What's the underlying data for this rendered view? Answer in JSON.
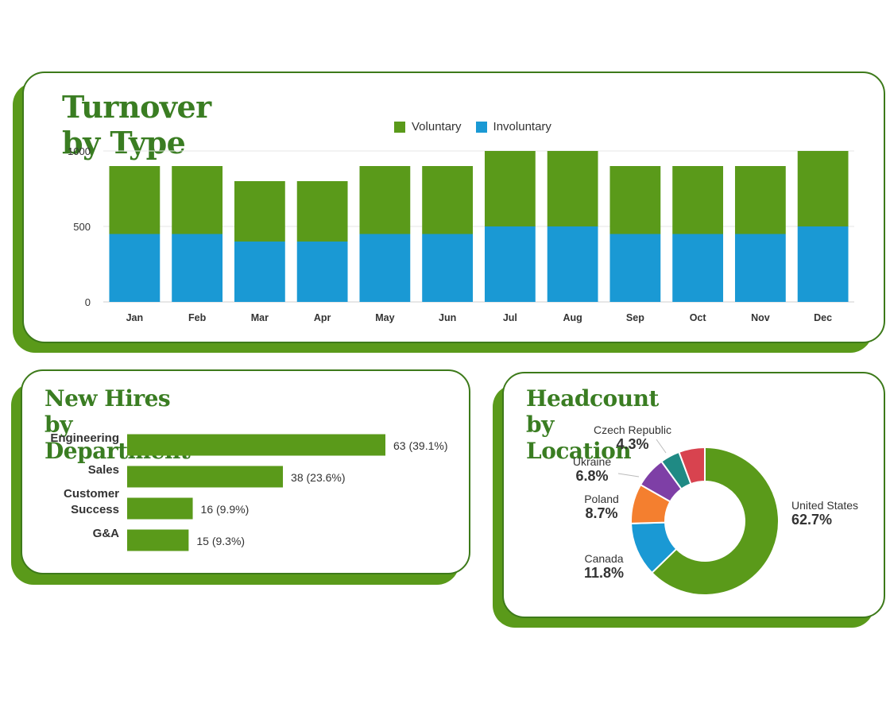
{
  "colors": {
    "brand_green": "#5a9a1a",
    "title_green": "#3a7d22",
    "voluntary": "#5a9a1a",
    "involuntary": "#1a99d4",
    "bar_green": "#5a9a1a"
  },
  "turnover": {
    "title": "Turnover by Type",
    "chart_data": {
      "type": "bar",
      "stacked": true,
      "title": "Turnover by Type",
      "categories": [
        "Jan",
        "Feb",
        "Mar",
        "Apr",
        "May",
        "Jun",
        "Jul",
        "Aug",
        "Sep",
        "Oct",
        "Nov",
        "Dec"
      ],
      "series": [
        {
          "name": "Voluntary",
          "color": "#5a9a1a",
          "values": [
            450,
            450,
            400,
            400,
            450,
            450,
            500,
            500,
            450,
            450,
            450,
            500
          ]
        },
        {
          "name": "Involuntary",
          "color": "#1a99d4",
          "values": [
            450,
            450,
            400,
            400,
            450,
            450,
            500,
            500,
            450,
            450,
            450,
            500
          ]
        }
      ],
      "ylim": [
        0,
        1000
      ],
      "yticks": [
        0,
        500,
        1000
      ],
      "grid": true,
      "legend_position": "top-center"
    }
  },
  "hires": {
    "title": "New Hires by Department",
    "chart_data": {
      "type": "bar",
      "orientation": "horizontal",
      "title": "New Hires by Department",
      "categories": [
        "Engineering",
        "Sales",
        "Customer Success",
        "G&A"
      ],
      "category_lines": [
        [
          "Engineering"
        ],
        [
          "Sales"
        ],
        [
          "Customer",
          "Success"
        ],
        [
          "G&A"
        ]
      ],
      "values": [
        63,
        38,
        16,
        15
      ],
      "data_labels": [
        "63 (39.1%)",
        "38 (23.6%)",
        "16 (9.9%)",
        "15 (9.3%)"
      ],
      "xlim": [
        0,
        63
      ]
    }
  },
  "headcount": {
    "title": "Headcount by Location",
    "chart_data": {
      "type": "pie",
      "donut": true,
      "title": "Headcount by Location",
      "slices": [
        {
          "label": "United States",
          "percent_label": "62.7%",
          "value": 62.7,
          "color": "#5a9a1a"
        },
        {
          "label": "Canada",
          "percent_label": "11.8%",
          "value": 11.8,
          "color": "#1a99d4"
        },
        {
          "label": "Poland",
          "percent_label": "8.7%",
          "value": 8.7,
          "color": "#f47f2f"
        },
        {
          "label": "Ukraine",
          "percent_label": "6.8%",
          "value": 6.8,
          "color": "#7e3fa6"
        },
        {
          "label": "Czech Republic",
          "percent_label": "4.3%",
          "value": 4.3,
          "color": "#1f8a84"
        },
        {
          "label": "",
          "percent_label": "",
          "value": 5.7,
          "color": "#d8434f"
        }
      ]
    }
  }
}
